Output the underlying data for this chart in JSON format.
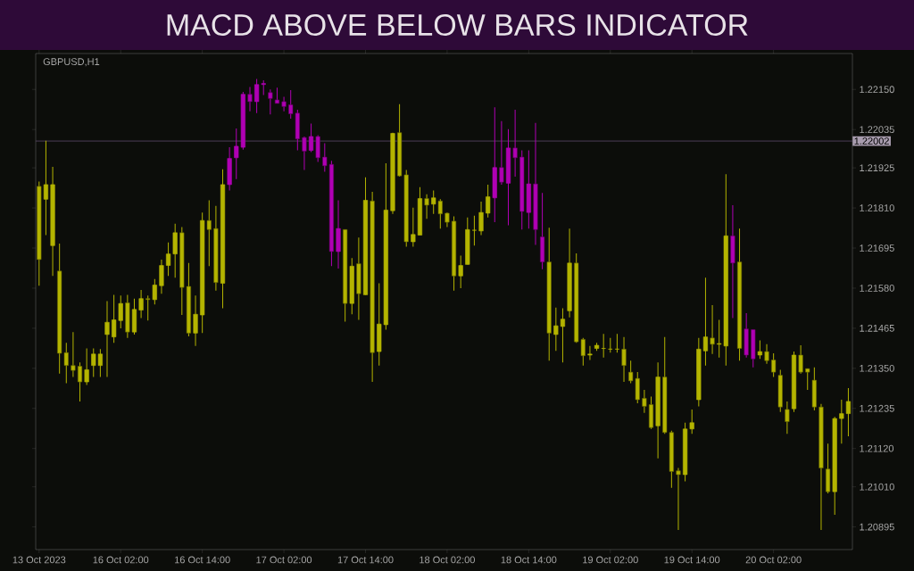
{
  "chart_data": {
    "type": "candlestick",
    "title": "MACD ABOVE BELOW BARS INDICATOR",
    "subtitle": "GBPUSD,H1",
    "categories": [
      "13 Oct 2023",
      null,
      null,
      null,
      null,
      null,
      null,
      null,
      null,
      null,
      null,
      null,
      "16 Oct 02:00",
      null,
      null,
      null,
      null,
      null,
      null,
      null,
      null,
      null,
      null,
      null,
      "16 Oct 14:00",
      null,
      null,
      null,
      null,
      null,
      null,
      null,
      null,
      null,
      null,
      null,
      "17 Oct 02:00",
      null,
      null,
      null,
      null,
      null,
      null,
      null,
      null,
      null,
      null,
      null,
      "17 Oct 14:00",
      null,
      null,
      null,
      null,
      null,
      null,
      null,
      null,
      null,
      null,
      null,
      "18 Oct 02:00",
      null,
      null,
      null,
      null,
      null,
      null,
      null,
      null,
      null,
      null,
      null,
      "18 Oct 14:00",
      null,
      null,
      null,
      null,
      null,
      null,
      null,
      null,
      null,
      null,
      null,
      "19 Oct 02:00",
      null,
      null,
      null,
      null,
      null,
      null,
      null,
      null,
      null,
      null,
      null,
      "19 Oct 14:00",
      null,
      null,
      null,
      null,
      null,
      null,
      null,
      null,
      null,
      null,
      null,
      "20 Oct 02:00",
      null,
      null,
      null,
      null,
      null,
      null,
      null,
      null,
      null,
      null,
      null
    ],
    "ohlc": [
      [
        1.21872,
        1.21886,
        1.21587,
        1.21662
      ],
      [
        1.21835,
        1.22003,
        1.21732,
        1.21877
      ],
      [
        1.21702,
        1.21928,
        1.21615,
        1.21877
      ],
      [
        1.21629,
        1.21708,
        1.21335,
        1.21393
      ],
      [
        1.21395,
        1.21423,
        1.21307,
        1.21358
      ],
      [
        1.21358,
        1.21454,
        1.21325,
        1.21344
      ],
      [
        1.21356,
        1.21367,
        1.21255,
        1.21311
      ],
      [
        1.21311,
        1.21407,
        1.21302,
        1.21346
      ],
      [
        1.21358,
        1.21407,
        1.21325,
        1.21391
      ],
      [
        1.21358,
        1.21405,
        1.21325,
        1.21391
      ],
      [
        1.21447,
        1.21543,
        1.21325,
        1.21482
      ],
      [
        1.2144,
        1.21561,
        1.21423,
        1.21489
      ],
      [
        1.21487,
        1.21559,
        1.21465,
        1.21536
      ],
      [
        1.21538,
        1.21561,
        1.21437,
        1.21454
      ],
      [
        1.21454,
        1.2155,
        1.21447,
        1.21519
      ],
      [
        1.21517,
        1.21575,
        1.21494,
        1.2155
      ],
      [
        1.2155,
        1.21559,
        1.21487,
        1.21547
      ],
      [
        1.21547,
        1.21606,
        1.21533,
        1.21589
      ],
      [
        1.21587,
        1.21662,
        1.21564,
        1.21645
      ],
      [
        1.21645,
        1.21711,
        1.21615,
        1.21678
      ],
      [
        1.21678,
        1.21765,
        1.2161,
        1.21739
      ],
      [
        1.21739,
        1.21755,
        1.21503,
        1.21582
      ],
      [
        1.21585,
        1.21652,
        1.21442,
        1.21451
      ],
      [
        1.21451,
        1.21559,
        1.21414,
        1.21505
      ],
      [
        1.21503,
        1.21797,
        1.21451,
        1.21774
      ],
      [
        1.21774,
        1.21832,
        1.21643,
        1.21748
      ],
      [
        1.21751,
        1.21816,
        1.21573,
        1.21596
      ],
      [
        1.21594,
        1.21921,
        1.21522,
        1.21877
      ],
      [
        1.21877,
        1.21984,
        1.2186,
        1.21952
      ],
      [
        1.21954,
        1.22038,
        1.21893,
        1.21987
      ],
      [
        1.21984,
        1.22143,
        1.21977,
        1.22136
      ],
      [
        1.22136,
        1.22157,
        1.22087,
        1.22115
      ],
      [
        1.22115,
        1.2218,
        1.22082,
        1.22164
      ],
      [
        1.22164,
        1.22176,
        1.22134,
        1.22167
      ],
      [
        1.22141,
        1.2215,
        1.22078,
        1.22124
      ],
      [
        1.2212,
        1.22155,
        1.2211,
        1.2211
      ],
      [
        1.22115,
        1.22129,
        1.22087,
        1.22101
      ],
      [
        1.22106,
        1.22148,
        1.22066,
        1.2208
      ],
      [
        1.22082,
        1.22092,
        1.21975,
        1.22008
      ],
      [
        1.22012,
        1.22015,
        1.21919,
        1.21973
      ],
      [
        1.21975,
        1.22052,
        1.2197,
        1.22015
      ],
      [
        1.22015,
        1.22019,
        1.21942,
        1.21954
      ],
      [
        1.21956,
        1.21996,
        1.21914,
        1.21931
      ],
      [
        1.21935,
        1.21945,
        1.21643,
        1.21685
      ],
      [
        1.21685,
        1.21832,
        1.21636,
        1.21751
      ],
      [
        1.21748,
        1.21748,
        1.21484,
        1.21536
      ],
      [
        1.21536,
        1.21666,
        1.21505,
        1.21643
      ],
      [
        1.2165,
        1.21725,
        1.21489,
        1.21564
      ],
      [
        1.21561,
        1.21898,
        1.21561,
        1.21832
      ],
      [
        1.2183,
        1.21856,
        1.21311,
        1.21395
      ],
      [
        1.21398,
        1.21594,
        1.21358,
        1.21477
      ],
      [
        1.21475,
        1.21938,
        1.21461,
        1.21804
      ],
      [
        1.21802,
        1.22026,
        1.21793,
        1.22024
      ],
      [
        1.22026,
        1.22108,
        1.219,
        1.21902
      ],
      [
        1.21905,
        1.21919,
        1.21699,
        1.21713
      ],
      [
        1.21713,
        1.21811,
        1.21699,
        1.21734
      ],
      [
        1.21732,
        1.2187,
        1.21732,
        1.21837
      ],
      [
        1.21837,
        1.21849,
        1.21779,
        1.21818
      ],
      [
        1.21821,
        1.2186,
        1.21793,
        1.21839
      ],
      [
        1.2183,
        1.21835,
        1.21751,
        1.21793
      ],
      [
        1.21795,
        1.21797,
        1.21755,
        1.21769
      ],
      [
        1.21772,
        1.21786,
        1.21573,
        1.21615
      ],
      [
        1.21615,
        1.21673,
        1.2158,
        1.21645
      ],
      [
        1.21648,
        1.21783,
        1.21648,
        1.21748
      ],
      [
        1.21746,
        1.21788,
        1.21702,
        1.21746
      ],
      [
        1.21744,
        1.21828,
        1.21732,
        1.21797
      ],
      [
        1.21795,
        1.21877,
        1.21783,
        1.21842
      ],
      [
        1.21839,
        1.22099,
        1.21769,
        1.21926
      ],
      [
        1.21926,
        1.22059,
        1.21877,
        1.21884
      ],
      [
        1.21881,
        1.22036,
        1.2176,
        1.21982
      ],
      [
        1.21982,
        1.22092,
        1.219,
        1.21954
      ],
      [
        1.21956,
        1.21975,
        1.21748,
        1.218
      ],
      [
        1.21797,
        1.21975,
        1.21751,
        1.21879
      ],
      [
        1.21879,
        1.22054,
        1.21704,
        1.21748
      ],
      [
        1.21727,
        1.21853,
        1.21634,
        1.21655
      ],
      [
        1.21655,
        1.21753,
        1.21372,
        1.21451
      ],
      [
        1.21447,
        1.21524,
        1.214,
        1.21472
      ],
      [
        1.2147,
        1.21522,
        1.21367,
        1.21491
      ],
      [
        1.21515,
        1.21751,
        1.21496,
        1.21652
      ],
      [
        1.21652,
        1.2168,
        1.21423,
        1.21426
      ],
      [
        1.21433,
        1.21437,
        1.21358,
        1.21386
      ],
      [
        1.21388,
        1.21414,
        1.21374,
        1.21391
      ],
      [
        1.21407,
        1.21423,
        1.214,
        1.21416
      ],
      [
        1.21407,
        1.21449,
        1.21381,
        1.21407
      ],
      [
        1.21405,
        1.21437,
        1.21395,
        1.21405
      ],
      [
        1.21405,
        1.21449,
        1.21395,
        1.21405
      ],
      [
        1.21405,
        1.2144,
        1.21311,
        1.21358
      ],
      [
        1.21339,
        1.21372,
        1.21307,
        1.21314
      ],
      [
        1.21321,
        1.21339,
        1.2125,
        1.2126
      ],
      [
        1.21264,
        1.21288,
        1.21222,
        1.21241
      ],
      [
        1.21246,
        1.21269,
        1.21176,
        1.2118
      ],
      [
        1.21185,
        1.21367,
        1.21092,
        1.21325
      ],
      [
        1.21325,
        1.2144,
        1.21162,
        1.21166
      ],
      [
        1.21166,
        1.21171,
        1.21007,
        1.21054
      ],
      [
        1.21056,
        1.21064,
        1.20886,
        1.21045
      ],
      [
        1.21045,
        1.21194,
        1.21026,
        1.21176
      ],
      [
        1.21176,
        1.21232,
        1.21162,
        1.21194
      ],
      [
        1.2126,
        1.21437,
        1.21241,
        1.21405
      ],
      [
        1.214,
        1.2161,
        1.21358,
        1.2144
      ],
      [
        1.21437,
        1.21531,
        1.21391,
        1.21419
      ],
      [
        1.21419,
        1.21489,
        1.21381,
        1.21421
      ],
      [
        1.21414,
        1.21907,
        1.21358,
        1.2173
      ],
      [
        1.2173,
        1.21818,
        1.21494,
        1.21652
      ],
      [
        1.21655,
        1.21751,
        1.21372,
        1.21407
      ],
      [
        1.21463,
        1.21508,
        1.21381,
        1.21388
      ],
      [
        1.21461,
        1.21461,
        1.21353,
        1.21377
      ],
      [
        1.21388,
        1.2143,
        1.21377,
        1.21398
      ],
      [
        1.21398,
        1.21419,
        1.21363,
        1.21372
      ],
      [
        1.21374,
        1.21393,
        1.21325,
        1.21339
      ],
      [
        1.2133,
        1.21346,
        1.21225,
        1.21239
      ],
      [
        1.21232,
        1.21255,
        1.21162,
        1.21197
      ],
      [
        1.21234,
        1.21398,
        1.21225,
        1.21388
      ],
      [
        1.21388,
        1.21416,
        1.21335,
        1.21339
      ],
      [
        1.21349,
        1.21349,
        1.21288,
        1.21339
      ],
      [
        1.21316,
        1.21353,
        1.21229,
        1.21239
      ],
      [
        1.21239,
        1.21248,
        1.20886,
        1.21064
      ],
      [
        1.21061,
        1.21134,
        1.20991,
        1.20996
      ],
      [
        1.20996,
        1.21211,
        1.2093,
        1.21206
      ],
      [
        1.21206,
        1.2126,
        1.21134,
        1.2122
      ],
      [
        1.2122,
        1.21293,
        1.21155,
        1.21255
      ]
    ],
    "colors": [
      "#b4b400",
      "#b4b400",
      "#b4b400",
      "#b4b400",
      "#b4b400",
      "#b4b400",
      "#b4b400",
      "#b4b400",
      "#b4b400",
      "#b4b400",
      "#b4b400",
      "#b4b400",
      "#b4b400",
      "#b4b400",
      "#b4b400",
      "#b4b400",
      "#b4b400",
      "#b4b400",
      "#b4b400",
      "#b4b400",
      "#b4b400",
      "#b4b400",
      "#b4b400",
      "#b4b400",
      "#b4b400",
      "#b4b400",
      "#b4b400",
      "#b4b400",
      "#b000b4",
      "#b000b4",
      "#b000b4",
      "#b000b4",
      "#b000b4",
      "#b000b4",
      "#b000b4",
      "#b000b4",
      "#b000b4",
      "#b000b4",
      "#b000b4",
      "#b000b4",
      "#b000b4",
      "#b000b4",
      "#b000b4",
      "#b000b4",
      "#b000b4",
      "#b4b400",
      "#b4b400",
      "#b4b400",
      "#b4b400",
      "#b4b400",
      "#b4b400",
      "#b4b400",
      "#b4b400",
      "#b4b400",
      "#b4b400",
      "#b4b400",
      "#b4b400",
      "#b4b400",
      "#b4b400",
      "#b4b400",
      "#b4b400",
      "#b4b400",
      "#b4b400",
      "#b4b400",
      "#b4b400",
      "#b4b400",
      "#b4b400",
      "#b000b4",
      "#b000b4",
      "#b000b4",
      "#b000b4",
      "#b000b4",
      "#b000b4",
      "#b000b4",
      "#b000b4",
      "#b4b400",
      "#b4b400",
      "#b4b400",
      "#b4b400",
      "#b4b400",
      "#b4b400",
      "#b4b400",
      "#b4b400",
      "#b4b400",
      "#b4b400",
      "#b4b400",
      "#b4b400",
      "#b4b400",
      "#b4b400",
      "#b4b400",
      "#b4b400",
      "#b4b400",
      "#b4b400",
      "#b4b400",
      "#b4b400",
      "#b4b400",
      "#b4b400",
      "#b4b400",
      "#b4b400",
      "#b4b400",
      "#b4b400",
      "#b4b400",
      "#b000b4",
      "#b4b400",
      "#b000b4",
      "#b000b4",
      "#b4b400",
      "#b4b400",
      "#b4b400",
      "#b4b400",
      "#b4b400",
      "#b4b400",
      "#b4b400",
      "#b4b400",
      "#b4b400",
      "#b4b400",
      "#b4b400",
      "#b4b400",
      "#b4b400",
      "#b4b400"
    ],
    "ylim": [
      1.2083,
      1.22253
    ],
    "yticks": [
      {
        "value": 1.20895,
        "label": "1.20895"
      },
      {
        "value": 1.2101,
        "label": "1.21010"
      },
      {
        "value": 1.2112,
        "label": "1.21120"
      },
      {
        "value": 1.21235,
        "label": "1.21235"
      },
      {
        "value": 1.2135,
        "label": "1.21350"
      },
      {
        "value": 1.21465,
        "label": "1.21465"
      },
      {
        "value": 1.2158,
        "label": "1.21580"
      },
      {
        "value": 1.21695,
        "label": "1.21695"
      },
      {
        "value": 1.2181,
        "label": "1.21810"
      },
      {
        "value": 1.21925,
        "label": "1.21925"
      },
      {
        "value": 1.22035,
        "label": "1.22035"
      },
      {
        "value": 1.2215,
        "label": "1.22150"
      }
    ],
    "ref_lines": [
      {
        "axis": "y",
        "value": 1.22002,
        "label": "1.22002",
        "color": "#5e4a6c"
      }
    ]
  }
}
